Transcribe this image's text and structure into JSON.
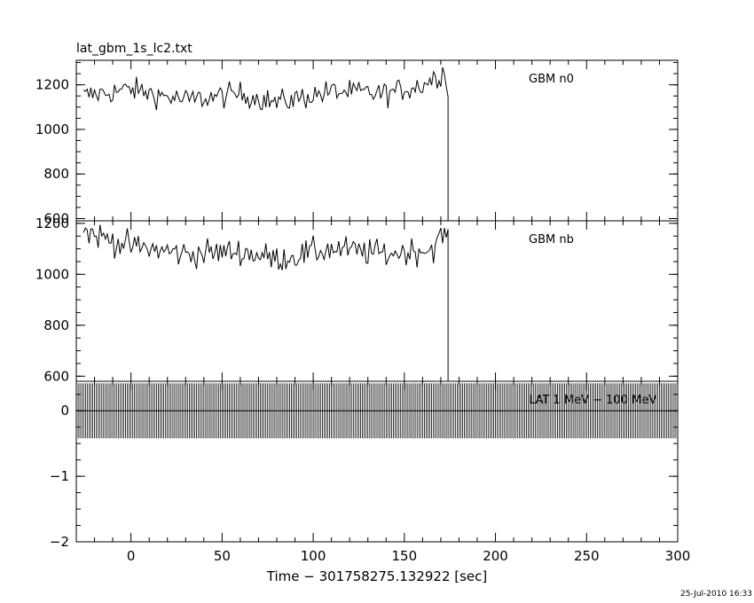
{
  "title": "lat_gbm_1s_lc2.txt",
  "timestamp": "25-Jul-2010 16:33",
  "chart_data": {
    "type": "line",
    "title": "lat_gbm_1s_lc2.txt",
    "xlabel": "Time − 301758275.132922 [sec]",
    "xlim": [
      -30,
      300
    ],
    "x_ticks": [
      0,
      50,
      100,
      150,
      200,
      250,
      300
    ],
    "x_tick_labels": [
      "0",
      "50",
      "100",
      "150",
      "200",
      "250",
      "300"
    ],
    "panels": [
      {
        "label": "GBM n0",
        "ylim": [
          590,
          1310
        ],
        "y_ticks": [
          600,
          800,
          1000,
          1200
        ],
        "y_tick_labels": [
          "600",
          "800",
          "1000",
          "1200"
        ],
        "series": {
          "x_start": -26,
          "x_end": 174,
          "step": 1,
          "baseline_mean": 1160,
          "noise_amplitude": 45,
          "approx_values": [
            {
              "x": -26,
              "y": 1150
            },
            {
              "x": 0,
              "y": 1180
            },
            {
              "x": 30,
              "y": 1130
            },
            {
              "x": 60,
              "y": 1160
            },
            {
              "x": 80,
              "y": 1120
            },
            {
              "x": 110,
              "y": 1170
            },
            {
              "x": 140,
              "y": 1160
            },
            {
              "x": 160,
              "y": 1200
            },
            {
              "x": 172,
              "y": 1260
            },
            {
              "x": 174,
              "y": 1180
            }
          ],
          "drop_to": 590
        }
      },
      {
        "label": "GBM nb",
        "ylim": [
          580,
          1210
        ],
        "y_ticks": [
          600,
          800,
          1000,
          1200
        ],
        "y_tick_labels": [
          "600",
          "800",
          "1000",
          "1200"
        ],
        "series": {
          "x_start": -26,
          "x_end": 174,
          "step": 1,
          "baseline_mean": 1090,
          "noise_amplitude": 45,
          "approx_values": [
            {
              "x": -26,
              "y": 1170
            },
            {
              "x": 0,
              "y": 1110
            },
            {
              "x": 30,
              "y": 1080
            },
            {
              "x": 60,
              "y": 1090
            },
            {
              "x": 80,
              "y": 1060
            },
            {
              "x": 110,
              "y": 1100
            },
            {
              "x": 140,
              "y": 1080
            },
            {
              "x": 165,
              "y": 1100
            },
            {
              "x": 172,
              "y": 1160
            },
            {
              "x": 174,
              "y": 1140
            }
          ],
          "drop_to": 580
        }
      },
      {
        "label": "LAT 1 MeV − 100 MeV",
        "ylim": [
          -2.0,
          0.45
        ],
        "y_ticks": [
          -2,
          -1,
          0
        ],
        "y_tick_labels": [
          "−2",
          "−1",
          "0"
        ],
        "series": {
          "x_start": -30,
          "x_end": 300,
          "step": 1,
          "value": 0,
          "errorbar_low": -0.42,
          "errorbar_high": 0.42
        }
      }
    ]
  }
}
